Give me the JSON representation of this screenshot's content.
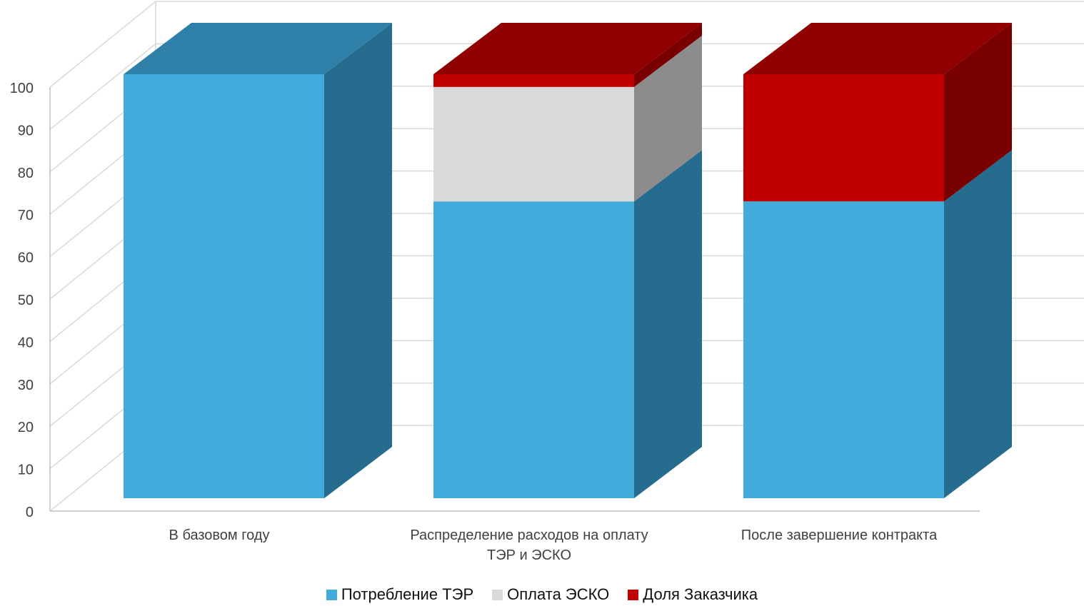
{
  "chart_data": {
    "type": "bar",
    "stacked": true,
    "three_d": true,
    "categories": [
      [
        "В базовом году"
      ],
      [
        "Распределение расходов на оплату",
        "ТЭР и ЭСКО"
      ],
      [
        "После завершение контракта"
      ]
    ],
    "series": [
      {
        "name": "Потребление ТЭР",
        "values": [
          100,
          70,
          70
        ],
        "color": "#41ABDC",
        "side_color": "#256C8E",
        "top_color": "#2E80A8"
      },
      {
        "name": "Оплата ЭСКО",
        "values": [
          0,
          27,
          0
        ],
        "color": "#D9D9D9",
        "side_color": "#8C8C8C",
        "top_color": "#A6A6A6"
      },
      {
        "name": "Доля Заказчика",
        "values": [
          0,
          3,
          30
        ],
        "color": "#C00000",
        "side_color": "#7A0000",
        "top_color": "#900000"
      }
    ],
    "ylim": [
      0,
      100
    ],
    "yticks": [
      0,
      10,
      20,
      30,
      40,
      50,
      60,
      70,
      80,
      90,
      100
    ],
    "grid": true,
    "legend": "bottom"
  }
}
